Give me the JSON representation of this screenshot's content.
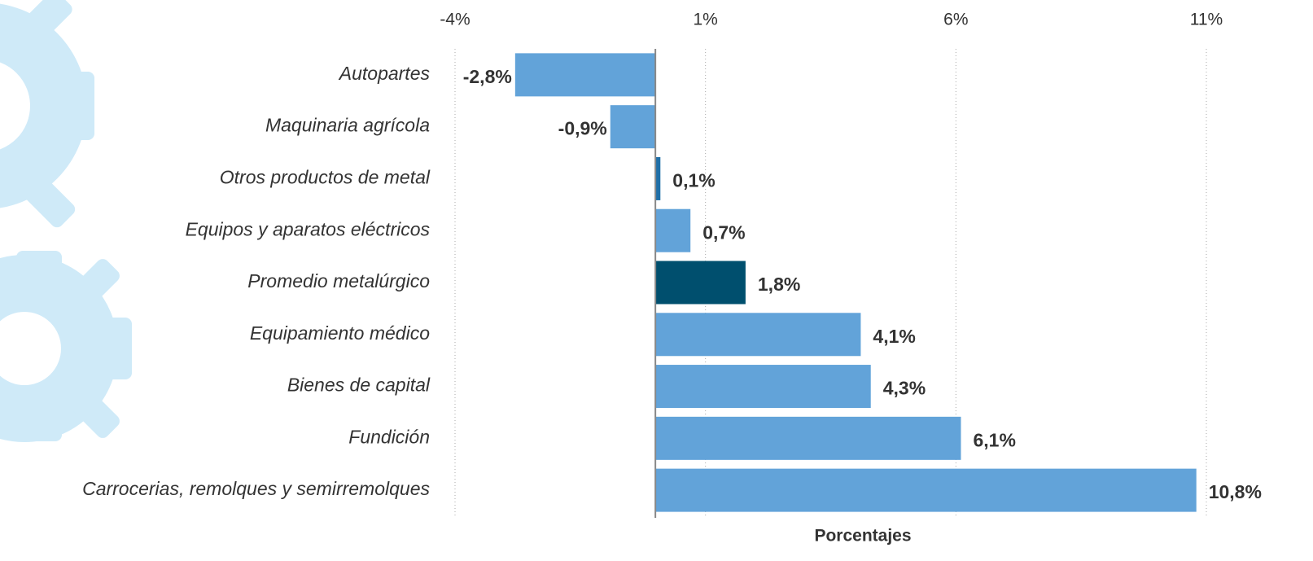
{
  "chart_data": {
    "type": "bar",
    "orientation": "horizontal",
    "categories": [
      "Autopartes",
      "Maquinaria agrícola",
      "Otros productos de metal",
      "Equipos y aparatos eléctricos",
      "Promedio metalúrgico",
      "Equipamiento médico",
      "Bienes de capital",
      "Fundición",
      "Carrocerias, remolques y semirremolques"
    ],
    "values": [
      -2.8,
      -0.9,
      0.1,
      0.7,
      1.8,
      4.1,
      4.3,
      6.1,
      10.8
    ],
    "value_labels": [
      "-2,8%",
      "-0,9%",
      "0,1%",
      "0,7%",
      "1,8%",
      "4,1%",
      "4,3%",
      "6,1%",
      "10,8%"
    ],
    "colors": [
      "#62a3d9",
      "#62a3d9",
      "#1f6fa8",
      "#62a3d9",
      "#004f6e",
      "#62a3d9",
      "#62a3d9",
      "#62a3d9",
      "#62a3d9"
    ],
    "xlim": [
      -4,
      11
    ],
    "xticks": [
      {
        "value": -4,
        "label": "-4%"
      },
      {
        "value": 1,
        "label": "1%"
      },
      {
        "value": 6,
        "label": "6%"
      },
      {
        "value": 11,
        "label": "11%"
      }
    ],
    "x_label": "Porcentajes",
    "grid": true
  }
}
